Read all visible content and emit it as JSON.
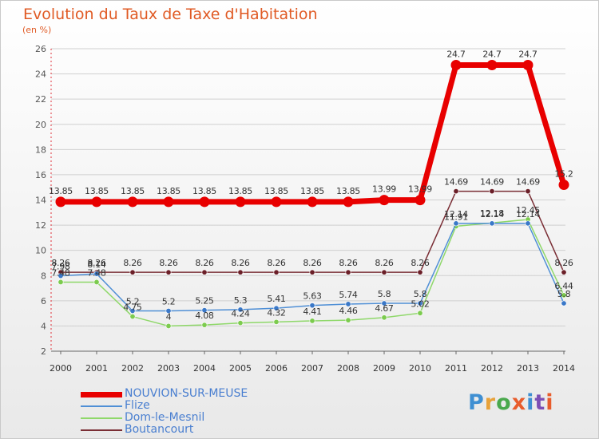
{
  "title": "Evolution du Taux de Taxe d'Habitation",
  "unit_label": "(en %)",
  "logo_text": "Proxiti",
  "colors": {
    "title": "#e05a24",
    "axis": "#e0333b",
    "grid": "#d0d0d0",
    "label": "#555555",
    "legend_text": "#4a7fd0"
  },
  "chart_data": {
    "type": "line",
    "x": [
      "2000",
      "2001",
      "2002",
      "2003",
      "2004",
      "2005",
      "2006",
      "2007",
      "2008",
      "2009",
      "2010",
      "2011",
      "2012",
      "2013",
      "2014"
    ],
    "ylim": [
      2,
      26
    ],
    "yticks": [
      2,
      4,
      6,
      8,
      10,
      12,
      14,
      16,
      18,
      20,
      22,
      24,
      26
    ],
    "grid": "horizontal",
    "legend_position": "bottom-left",
    "series": [
      {
        "name": "NOUVION-SUR-MEUSE",
        "color": "#e80000",
        "marker": "#e80000",
        "values": [
          13.85,
          13.85,
          13.85,
          13.85,
          13.85,
          13.85,
          13.85,
          13.85,
          13.85,
          13.99,
          13.99,
          24.7,
          24.7,
          24.7,
          15.2
        ],
        "labels": [
          "13.85",
          "13.85",
          "13.85",
          "13.85",
          "13.85",
          "13.85",
          "13.85",
          "13.85",
          "13.85",
          "13.99",
          "13.99",
          "24.7",
          "24.7",
          "24.7",
          "15.2"
        ]
      },
      {
        "name": "Flize",
        "color": "#4f8fd6",
        "marker": "#3a78c8",
        "values": [
          7.98,
          8.14,
          5.2,
          5.2,
          5.25,
          5.3,
          5.41,
          5.63,
          5.74,
          5.8,
          5.8,
          12.14,
          12.14,
          12.14,
          5.8
        ],
        "labels": [
          "7.98",
          "8.14",
          "5.2",
          "5.2",
          "5.25",
          "5.3",
          "5.41",
          "5.63",
          "5.74",
          "5.8",
          "5.8",
          "12.14",
          "12.14",
          "12.14",
          "5.8"
        ]
      },
      {
        "name": "Dom-le-Mesnil",
        "color": "#8fd86a",
        "marker": "#7ccb4e",
        "values": [
          7.48,
          7.48,
          4.75,
          4.0,
          4.08,
          4.24,
          4.32,
          4.41,
          4.46,
          4.67,
          5.02,
          11.91,
          12.18,
          12.45,
          6.44
        ],
        "labels": [
          "7.48",
          "7.48",
          "4.75",
          "4",
          "4.08",
          "4.24",
          "4.32",
          "4.41",
          "4.46",
          "4.67",
          "5.02",
          "11.91",
          "12.18",
          "12.45",
          "6.44"
        ]
      },
      {
        "name": "Boutancourt",
        "color": "#7a2e35",
        "marker": "#6b1f28",
        "values": [
          8.26,
          8.26,
          8.26,
          8.26,
          8.26,
          8.26,
          8.26,
          8.26,
          8.26,
          8.26,
          8.26,
          14.69,
          14.69,
          14.69,
          8.26
        ],
        "labels": [
          "8.26",
          "8.26",
          "8.26",
          "8.26",
          "8.26",
          "8.26",
          "8.26",
          "8.26",
          "8.26",
          "8.26",
          "8.26",
          "14.69",
          "14.69",
          "14.69",
          "8.26"
        ]
      }
    ]
  }
}
